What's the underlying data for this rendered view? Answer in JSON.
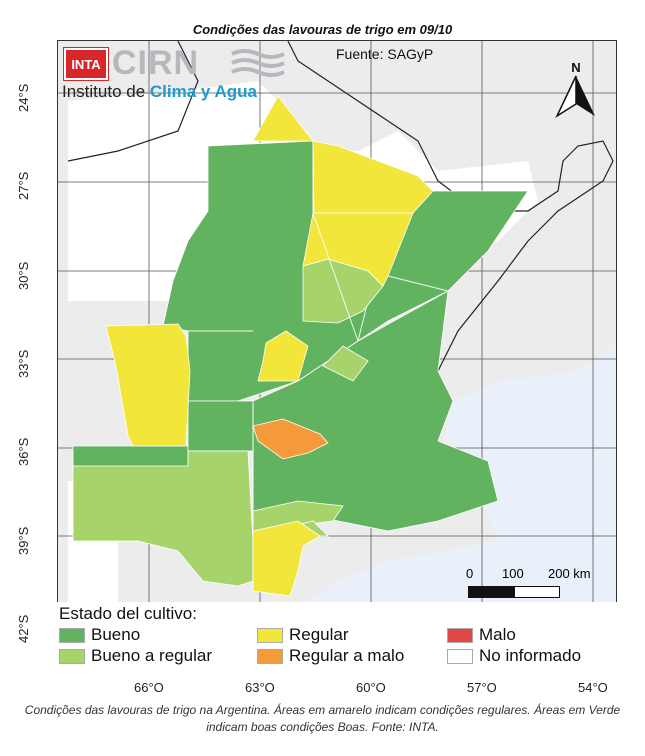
{
  "title": "Condições das lavouras de trigo em 09/10",
  "logo": {
    "org_badge": "INTA",
    "org_name": "CIRN",
    "subtitle_plain": "Instituto de ",
    "subtitle_accent": "Clima y Agua"
  },
  "source": "Fuente: SAGyP",
  "north_label": "N",
  "scale": {
    "tick_0": "0",
    "tick_100": "100",
    "tick_200": "200 km"
  },
  "latitudes": [
    "24°S",
    "27°S",
    "30°S",
    "33°S",
    "36°S",
    "39°S",
    "42°S"
  ],
  "longitudes": [
    "66°O",
    "63°O",
    "60°O",
    "57°O",
    "54°O"
  ],
  "legend": {
    "title": "Estado del cultivo:",
    "items": [
      {
        "label": "Bueno",
        "color": "#62b35f"
      },
      {
        "label": "Bueno a regular",
        "color": "#a6d46b"
      },
      {
        "label": "Regular",
        "color": "#f2e63a"
      },
      {
        "label": "Regular a malo",
        "color": "#f59a3b"
      },
      {
        "label": "Malo",
        "color": "#e04848"
      },
      {
        "label": "No informado",
        "color": "#ffffff"
      }
    ]
  },
  "colors": {
    "bueno": "#62b35f",
    "bueno_regular": "#a6d46b",
    "regular": "#f2e63a",
    "regular_malo": "#f59a3b",
    "land": "#ececec",
    "ocean": "#e9f0fa"
  },
  "caption": "Condições das lavouras de trigo na Argentina. Áreas em amarelo indicam condições regulares. Áreas em Verde indicam boas condições Boas. Fonte: INTA."
}
